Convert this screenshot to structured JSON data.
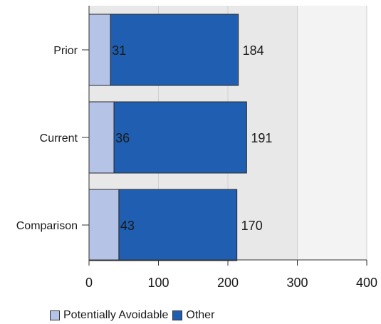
{
  "chart_data": {
    "type": "bar",
    "orientation": "horizontal",
    "stacked": true,
    "categories": [
      "Prior",
      "Current",
      "Comparison"
    ],
    "series": [
      {
        "name": "Potentially Avoidable",
        "values": [
          31,
          36,
          43
        ],
        "color": "#b4c3e6"
      },
      {
        "name": "Other",
        "values": [
          184,
          191,
          170
        ],
        "color": "#1f5eb0"
      }
    ],
    "xlim": [
      0,
      400
    ],
    "xticks": [
      "0",
      "100",
      "200",
      "300",
      "400"
    ],
    "grid": true,
    "legend_position": "bottom-left"
  }
}
